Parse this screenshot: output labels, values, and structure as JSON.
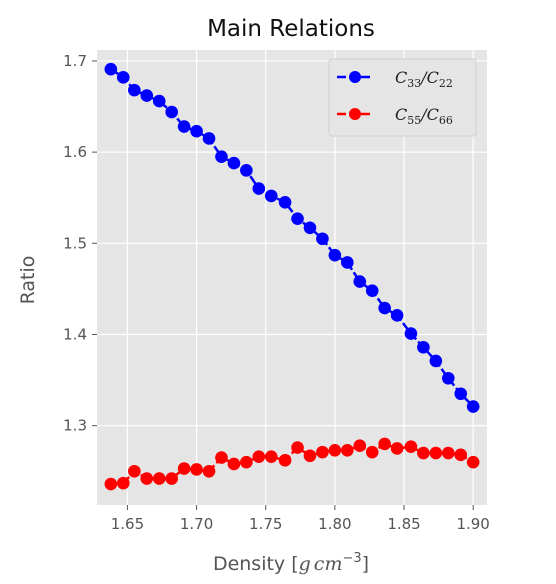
{
  "chart_data": {
    "type": "line",
    "title": "Main Relations",
    "xlabel": "Density [g cm⁻³]",
    "ylabel": "Ratio",
    "xlim": [
      1.628,
      1.91
    ],
    "ylim": [
      1.213,
      1.712
    ],
    "x_ticks": [
      1.65,
      1.7,
      1.75,
      1.8,
      1.85,
      1.9
    ],
    "x_tick_labels": [
      "1.65",
      "1.70",
      "1.75",
      "1.80",
      "1.85",
      "1.90"
    ],
    "y_ticks": [
      1.3,
      1.4,
      1.5,
      1.6,
      1.7
    ],
    "y_tick_labels": [
      "1.3",
      "1.4",
      "1.5",
      "1.6",
      "1.7"
    ],
    "grid": true,
    "legend_position": "top-right",
    "x": [
      1.638,
      1.647,
      1.655,
      1.664,
      1.673,
      1.682,
      1.691,
      1.7,
      1.709,
      1.718,
      1.727,
      1.736,
      1.745,
      1.754,
      1.764,
      1.773,
      1.782,
      1.791,
      1.8,
      1.809,
      1.818,
      1.827,
      1.836,
      1.845,
      1.855,
      1.864,
      1.873,
      1.882,
      1.891,
      1.9
    ],
    "series": [
      {
        "name": "C33/C22",
        "name_main1": "C",
        "name_sub1": "33",
        "name_sep": "/C",
        "name_sub2": "22",
        "color": "#0000ff",
        "values": [
          1.691,
          1.682,
          1.668,
          1.662,
          1.656,
          1.644,
          1.628,
          1.623,
          1.615,
          1.595,
          1.588,
          1.58,
          1.56,
          1.552,
          1.545,
          1.527,
          1.517,
          1.505,
          1.487,
          1.479,
          1.458,
          1.448,
          1.429,
          1.421,
          1.401,
          1.386,
          1.371,
          1.352,
          1.335,
          1.321
        ]
      },
      {
        "name": "C55/C66",
        "name_main1": "C",
        "name_sub1": "55",
        "name_sep": "/C",
        "name_sub2": "66",
        "color": "#ff0000",
        "values": [
          1.236,
          1.237,
          1.25,
          1.242,
          1.242,
          1.242,
          1.253,
          1.252,
          1.25,
          1.265,
          1.258,
          1.26,
          1.266,
          1.266,
          1.262,
          1.276,
          1.267,
          1.271,
          1.273,
          1.273,
          1.278,
          1.271,
          1.28,
          1.275,
          1.277,
          1.27,
          1.27,
          1.27,
          1.268,
          1.26
        ]
      }
    ]
  }
}
